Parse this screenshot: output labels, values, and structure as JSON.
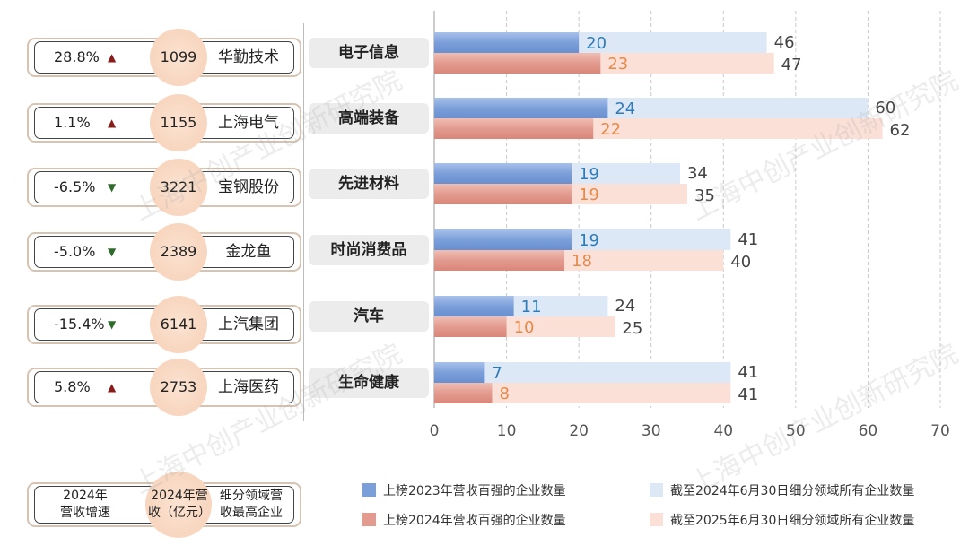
{
  "cards": [
    {
      "growth": "28.8%",
      "dir": "up",
      "revenue": "1099",
      "company": "华勤技术"
    },
    {
      "growth": "1.1%",
      "dir": "up",
      "revenue": "1155",
      "company": "上海电气"
    },
    {
      "growth": "-6.5%",
      "dir": "down",
      "revenue": "3221",
      "company": "宝钢股份"
    },
    {
      "growth": "-5.0%",
      "dir": "down",
      "revenue": "2389",
      "company": "金龙鱼"
    },
    {
      "growth": "-15.4%",
      "dir": "down",
      "revenue": "6141",
      "company": "上汽集团"
    },
    {
      "growth": "5.8%",
      "dir": "up",
      "revenue": "2753",
      "company": "上海医药"
    }
  ],
  "card_legend": {
    "growth": "2024年\n营收增速",
    "revenue": "2024年营\n收（亿元）",
    "company": "细分领域营\n收最高企业"
  },
  "watermark": "上海中创产业创新研究院",
  "chart_data": {
    "type": "bar",
    "orientation": "horizontal",
    "categories": [
      "电子信息",
      "高端装备",
      "先进材料",
      "时尚消费品",
      "汽车",
      "生命健康"
    ],
    "series": [
      {
        "name": "上榜2023年营收百强的企业数量",
        "values": [
          20,
          24,
          19,
          19,
          11,
          7
        ],
        "color": "#7b9fd9"
      },
      {
        "name": "截至2024年6月30日细分领域所有企业数量",
        "values": [
          46,
          60,
          34,
          41,
          24,
          41
        ],
        "color": "#dde8f7"
      },
      {
        "name": "上榜2024年营收百强的企业数量",
        "values": [
          23,
          22,
          19,
          18,
          10,
          8
        ],
        "color": "#e39b8f"
      },
      {
        "name": "截至2025年6月30日细分领域所有企业数量",
        "values": [
          47,
          62,
          35,
          40,
          25,
          41
        ],
        "color": "#fbe0d8"
      }
    ],
    "xlim": [
      0,
      70
    ],
    "xticks": [
      0,
      10,
      20,
      30,
      40,
      50,
      60,
      70
    ],
    "grid": true,
    "legend": "bottom",
    "label_colors": {
      "top_inner": "#2e7bb8",
      "bottom_inner": "#e58a4a",
      "outer": "#444444"
    }
  }
}
